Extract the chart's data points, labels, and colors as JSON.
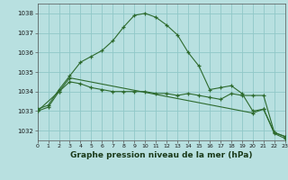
{
  "title": "Graphe pression niveau de la mer (hPa)",
  "bg_color": "#b8e0e0",
  "grid_color": "#90c8c8",
  "line_color": "#2d6a2d",
  "xlim": [
    0,
    23
  ],
  "ylim": [
    1031.5,
    1038.5
  ],
  "yticks": [
    1032,
    1033,
    1034,
    1035,
    1036,
    1037,
    1038
  ],
  "xticks": [
    0,
    1,
    2,
    3,
    4,
    5,
    6,
    7,
    8,
    9,
    10,
    11,
    12,
    13,
    14,
    15,
    16,
    17,
    18,
    19,
    20,
    21,
    22,
    23
  ],
  "series1_x": [
    0,
    1,
    2,
    3,
    4,
    5,
    6,
    7,
    8,
    9,
    10,
    11,
    12,
    13,
    14,
    15,
    16,
    17,
    18,
    19,
    20,
    21,
    22,
    23
  ],
  "series1_y": [
    1033.1,
    1033.3,
    1034.1,
    1034.8,
    1035.5,
    1035.8,
    1036.1,
    1036.6,
    1037.3,
    1037.9,
    1038.0,
    1037.8,
    1037.4,
    1036.9,
    1036.0,
    1035.3,
    1034.1,
    1034.2,
    1034.3,
    1033.9,
    1033.0,
    1033.1,
    1031.9,
    1031.7
  ],
  "series2_x": [
    0,
    1,
    2,
    3,
    4,
    5,
    6,
    7,
    8,
    9,
    10,
    11,
    12,
    13,
    14,
    15,
    16,
    17,
    18,
    19,
    20,
    21,
    22,
    23
  ],
  "series2_y": [
    1033.0,
    1033.2,
    1034.0,
    1034.5,
    1034.4,
    1034.2,
    1034.1,
    1034.0,
    1034.0,
    1034.0,
    1034.0,
    1033.9,
    1033.9,
    1033.8,
    1033.9,
    1033.8,
    1033.7,
    1033.6,
    1033.9,
    1033.8,
    1033.8,
    1033.8,
    1031.9,
    1031.7
  ],
  "series3_x": [
    0,
    2,
    3,
    20,
    21,
    22,
    23
  ],
  "series3_y": [
    1033.0,
    1034.0,
    1034.7,
    1032.9,
    1033.1,
    1031.85,
    1031.6
  ]
}
